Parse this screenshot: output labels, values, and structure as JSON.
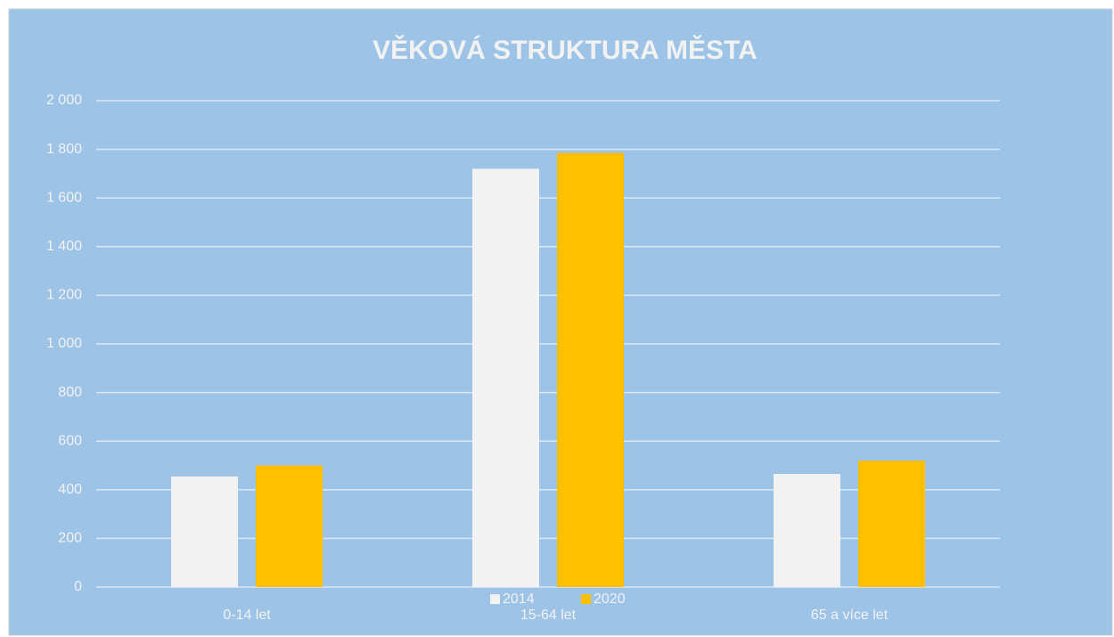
{
  "chart_data": {
    "type": "bar",
    "title": "VĚKOVÁ STRUKTURA MĚSTA",
    "categories": [
      "0-14 let",
      "15-64 let",
      "65 a více let"
    ],
    "series": [
      {
        "name": "2014",
        "color": "#f2f2f2",
        "values": [
          455,
          1720,
          465
        ]
      },
      {
        "name": "2020",
        "color": "#ffc000",
        "values": [
          500,
          1785,
          520
        ]
      }
    ],
    "ylim": [
      0,
      2000
    ],
    "yticks": [
      0,
      200,
      400,
      600,
      800,
      {
        "value": 1000,
        "label": "1 000"
      },
      {
        "value": 1200,
        "label": "1 200"
      },
      {
        "value": 1400,
        "label": "1 400"
      },
      {
        "value": 1600,
        "label": "1 600"
      },
      {
        "value": 1800,
        "label": "1 800"
      },
      {
        "value": 2000,
        "label": "2 000"
      }
    ],
    "grid": true,
    "legend": "bottom"
  }
}
